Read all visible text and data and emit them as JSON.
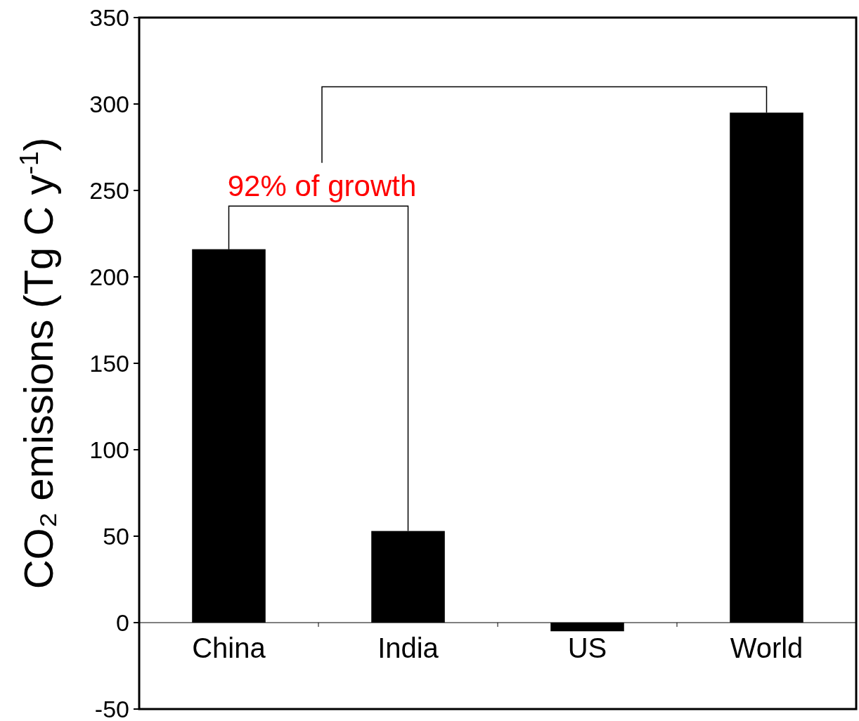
{
  "chart_data": {
    "type": "bar",
    "ylabel": "CO₂ emissions (Tg C y$^{-1}$)",
    "categories": [
      "China",
      "India",
      "US",
      "World"
    ],
    "values": [
      216,
      53,
      -5,
      295
    ],
    "color": "#000000",
    "ylim": [
      -50,
      350
    ],
    "yticks": [
      -50,
      0,
      50,
      100,
      150,
      200,
      250,
      300,
      350
    ],
    "grid": false,
    "annotations": [
      "92% of growth"
    ]
  }
}
